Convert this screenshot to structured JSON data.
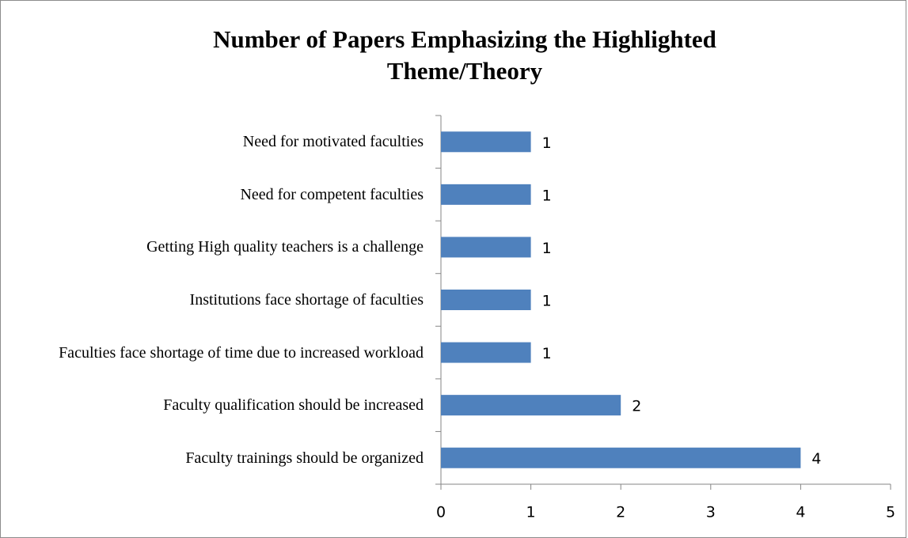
{
  "chart_data": {
    "type": "bar",
    "orientation": "horizontal",
    "title": "Number of Papers Emphasizing the Highlighted Theme/Theory",
    "categories": [
      "Need for motivated faculties",
      "Need for competent faculties",
      "Getting High quality teachers is a challenge",
      "Institutions face shortage of faculties",
      "Faculties face shortage of time due to increased workload",
      "Faculty qualification should be increased",
      "Faculty trainings should be organized"
    ],
    "values": [
      1,
      1,
      1,
      1,
      1,
      2,
      4
    ],
    "color": "#4f81bd",
    "xlim": [
      0,
      5
    ],
    "xticks": [
      0,
      1,
      2,
      3,
      4,
      5
    ],
    "grid": false
  }
}
